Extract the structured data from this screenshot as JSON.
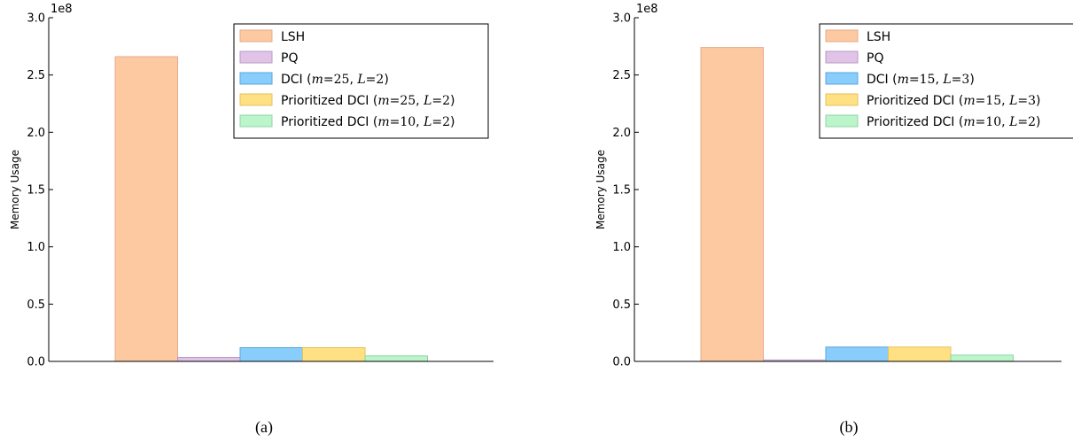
{
  "chart_data": [
    {
      "type": "bar",
      "caption": "(a)",
      "ylabel": "Memory Usage",
      "xlabel": "",
      "ylim": [
        0,
        300000000
      ],
      "y_exponent_label": "1e8",
      "y_ticks": [
        "0.0",
        "0.5",
        "1.0",
        "1.5",
        "2.0",
        "2.5",
        "3.0"
      ],
      "grid": false,
      "legend_position": "top-right",
      "series": [
        {
          "name": "LSH",
          "value": 266000000,
          "color": "#fdc9a1",
          "edge": "#e8a98a"
        },
        {
          "name": "PQ",
          "value": 3500000,
          "color": "#e2c3e8",
          "edge": "#b79ac6"
        },
        {
          "name": "DCI (m=25, L=2)",
          "value": 12000000,
          "color": "#89cdfc",
          "edge": "#5aa6de"
        },
        {
          "name": "Prioritized DCI (m=25, L=2)",
          "value": 12000000,
          "color": "#ffe083",
          "edge": "#e4c25a"
        },
        {
          "name": "Prioritized DCI (m=10, L=2)",
          "value": 4800000,
          "color": "#bdf5cb",
          "edge": "#8fd4a4"
        }
      ]
    },
    {
      "type": "bar",
      "caption": "(b)",
      "ylabel": "Memory Usage",
      "xlabel": "",
      "ylim": [
        0,
        300000000
      ],
      "y_exponent_label": "1e8",
      "y_ticks": [
        "0.0",
        "0.5",
        "1.0",
        "1.5",
        "2.0",
        "2.5",
        "3.0"
      ],
      "grid": false,
      "legend_position": "top-right",
      "series": [
        {
          "name": "LSH",
          "value": 274000000,
          "color": "#fdc9a1",
          "edge": "#e8a98a"
        },
        {
          "name": "PQ",
          "value": 1200000,
          "color": "#e2c3e8",
          "edge": "#b79ac6"
        },
        {
          "name": "DCI (m=15, L=3)",
          "value": 12500000,
          "color": "#89cdfc",
          "edge": "#5aa6de"
        },
        {
          "name": "Prioritized DCI (m=15, L=3)",
          "value": 12500000,
          "color": "#ffe083",
          "edge": "#e4c25a"
        },
        {
          "name": "Prioritized DCI (m=10, L=2)",
          "value": 5500000,
          "color": "#bdf5cb",
          "edge": "#8fd4a4"
        }
      ]
    }
  ]
}
